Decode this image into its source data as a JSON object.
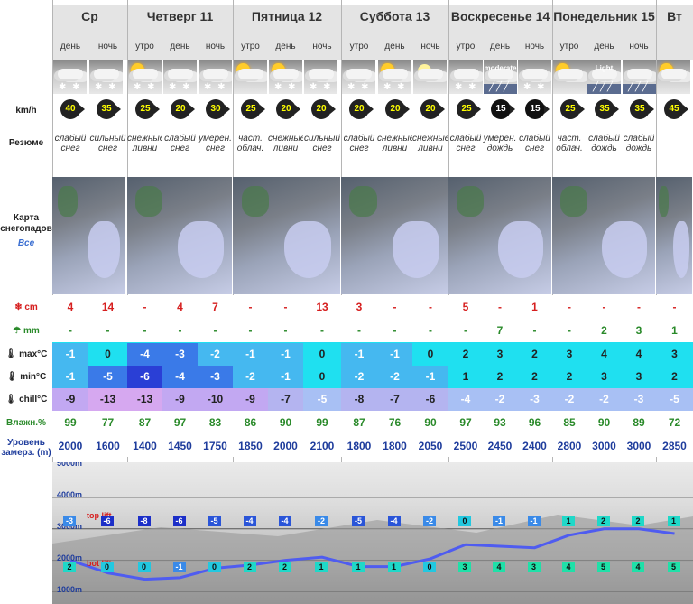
{
  "row_labels": {
    "wind": "km/h",
    "summary": "Резюме",
    "map_title": "Карта снегопадов",
    "map_link": "Все",
    "snow": "cm",
    "rain": "mm",
    "max": "max°C",
    "min": "min°C",
    "chill": "chill°C",
    "humidity": "Влажн.%",
    "freeze": "Уровень замерз. (m)"
  },
  "days": [
    {
      "name": "Ср",
      "parts": [
        "день",
        "ночь"
      ]
    },
    {
      "name": "Четверг 11",
      "parts": [
        "утро",
        "день",
        "ночь"
      ]
    },
    {
      "name": "Пятница 12",
      "parts": [
        "утро",
        "день",
        "ночь"
      ]
    },
    {
      "name": "Суббота 13",
      "parts": [
        "утро",
        "день",
        "ночь"
      ]
    },
    {
      "name": "Воскресенье 14",
      "parts": [
        "утро",
        "день",
        "ночь"
      ]
    },
    {
      "name": "Понедельник 15",
      "parts": [
        "утро",
        "день",
        "ночь"
      ]
    },
    {
      "name": "Вт",
      "parts": [
        ""
      ]
    }
  ],
  "columns": [
    {
      "icon": "cloud-snow-icon",
      "icon_label": "",
      "wind": "40",
      "wind_color": "yellow",
      "summary": "слабый снег",
      "snow": "4",
      "rain": "-",
      "max": "-1",
      "min": "-1",
      "chill": "-9",
      "hum": "99",
      "freeze": "2000"
    },
    {
      "icon": "cloud-snow-icon",
      "icon_label": "",
      "wind": "35",
      "wind_color": "yellow",
      "summary": "сильный снег",
      "snow": "14",
      "rain": "-",
      "max": "0",
      "min": "-5",
      "chill": "-13",
      "hum": "77",
      "freeze": "1600"
    },
    {
      "icon": "sun-cloud-snow-icon",
      "icon_label": "",
      "wind": "25",
      "wind_color": "yellow",
      "summary": "снежные ливни",
      "snow": "-",
      "rain": "-",
      "max": "-4",
      "min": "-6",
      "chill": "-13",
      "hum": "87",
      "freeze": "1400"
    },
    {
      "icon": "cloud-snow-icon",
      "icon_label": "",
      "wind": "20",
      "wind_color": "yellow",
      "summary": "слабый снег",
      "snow": "4",
      "rain": "-",
      "max": "-3",
      "min": "-4",
      "chill": "-9",
      "hum": "97",
      "freeze": "1450"
    },
    {
      "icon": "cloud-snow-icon",
      "icon_label": "",
      "wind": "30",
      "wind_color": "yellow",
      "summary": "умерен. снег",
      "snow": "7",
      "rain": "-",
      "max": "-2",
      "min": "-3",
      "chill": "-10",
      "hum": "83",
      "freeze": "1750"
    },
    {
      "icon": "sun-cloud-icon",
      "icon_label": "",
      "wind": "25",
      "wind_color": "yellow",
      "summary": "част. облач.",
      "snow": "-",
      "rain": "-",
      "max": "-1",
      "min": "-2",
      "chill": "-9",
      "hum": "86",
      "freeze": "1850"
    },
    {
      "icon": "sun-cloud-snow-icon",
      "icon_label": "",
      "wind": "20",
      "wind_color": "yellow",
      "summary": "снежные ливни",
      "snow": "-",
      "rain": "-",
      "max": "-1",
      "min": "-1",
      "chill": "-7",
      "hum": "90",
      "freeze": "2000"
    },
    {
      "icon": "cloud-snow-icon",
      "icon_label": "",
      "wind": "20",
      "wind_color": "yellow",
      "summary": "сильный снег",
      "snow": "13",
      "rain": "-",
      "max": "0",
      "min": "0",
      "chill": "-5",
      "hum": "99",
      "freeze": "2100"
    },
    {
      "icon": "cloud-snow-icon",
      "icon_label": "",
      "wind": "20",
      "wind_color": "yellow",
      "summary": "слабый снег",
      "snow": "3",
      "rain": "-",
      "max": "-1",
      "min": "-2",
      "chill": "-8",
      "hum": "87",
      "freeze": "1800"
    },
    {
      "icon": "sun-cloud-snow-icon",
      "icon_label": "",
      "wind": "20",
      "wind_color": "yellow",
      "summary": "снежные ливни",
      "snow": "-",
      "rain": "-",
      "max": "-1",
      "min": "-2",
      "chill": "-7",
      "hum": "76",
      "freeze": "1800"
    },
    {
      "icon": "moon-cloud-icon",
      "icon_label": "",
      "wind": "20",
      "wind_color": "yellow",
      "summary": "снежные ливни",
      "snow": "-",
      "rain": "-",
      "max": "0",
      "min": "-1",
      "chill": "-6",
      "hum": "90",
      "freeze": "2050"
    },
    {
      "icon": "cloud-snow-icon",
      "icon_label": "",
      "wind": "25",
      "wind_color": "yellow",
      "summary": "слабый снег",
      "snow": "5",
      "rain": "-",
      "max": "2",
      "min": "1",
      "chill": "-4",
      "hum": "97",
      "freeze": "2500"
    },
    {
      "icon": "cloud-rain-icon",
      "icon_label": "moderate",
      "wind": "15",
      "wind_color": "white",
      "summary": "умерен. дождь",
      "snow": "-",
      "rain": "7",
      "max": "3",
      "min": "2",
      "chill": "-2",
      "hum": "93",
      "freeze": "2450"
    },
    {
      "icon": "cloud-snow-icon",
      "icon_label": "",
      "wind": "15",
      "wind_color": "white",
      "summary": "слабый снег",
      "snow": "1",
      "rain": "-",
      "max": "2",
      "min": "2",
      "chill": "-3",
      "hum": "96",
      "freeze": "2400"
    },
    {
      "icon": "sun-cloud-icon",
      "icon_label": "",
      "wind": "25",
      "wind_color": "yellow",
      "summary": "част. облач.",
      "snow": "-",
      "rain": "-",
      "max": "3",
      "min": "2",
      "chill": "-2",
      "hum": "85",
      "freeze": "2800"
    },
    {
      "icon": "cloud-rain-icon",
      "icon_label": "Light",
      "wind": "35",
      "wind_color": "yellow",
      "summary": "слабый дождь",
      "snow": "-",
      "rain": "2",
      "max": "4",
      "min": "3",
      "chill": "-2",
      "hum": "90",
      "freeze": "3000"
    },
    {
      "icon": "cloud-rain-icon",
      "icon_label": "",
      "wind": "35",
      "wind_color": "yellow",
      "summary": "слабый дождь",
      "snow": "-",
      "rain": "3",
      "max": "4",
      "min": "3",
      "chill": "-3",
      "hum": "89",
      "freeze": "3000"
    },
    {
      "icon": "sun-cloud-icon",
      "icon_label": "",
      "wind": "45",
      "wind_color": "yellow",
      "summary": "",
      "snow": "-",
      "rain": "1",
      "max": "3",
      "min": "2",
      "chill": "-5",
      "hum": "72",
      "freeze": "2850"
    }
  ],
  "chart": {
    "altitudes": [
      "5000m",
      "4000m",
      "3000m",
      "2000m",
      "1000m"
    ],
    "top_lift": "top lift",
    "bot_lift": "bot lift",
    "top_temps": [
      "-3",
      "-6",
      "-8",
      "-6",
      "-5",
      "-4",
      "-4",
      "-2",
      "-5",
      "-4",
      "-2",
      "0",
      "-1",
      "-1",
      "1",
      "2",
      "2",
      "1"
    ],
    "bot_temps": [
      "2",
      "0",
      "0",
      "-1",
      "0",
      "2",
      "2",
      "1",
      "1",
      "1",
      "0",
      "3",
      "4",
      "3",
      "4",
      "5",
      "4",
      "5"
    ],
    "freeze_series_m": [
      2000,
      1600,
      1400,
      1450,
      1750,
      1850,
      2000,
      2100,
      1800,
      1800,
      2050,
      2500,
      2450,
      2400,
      2800,
      3000,
      3000,
      2850
    ]
  }
}
